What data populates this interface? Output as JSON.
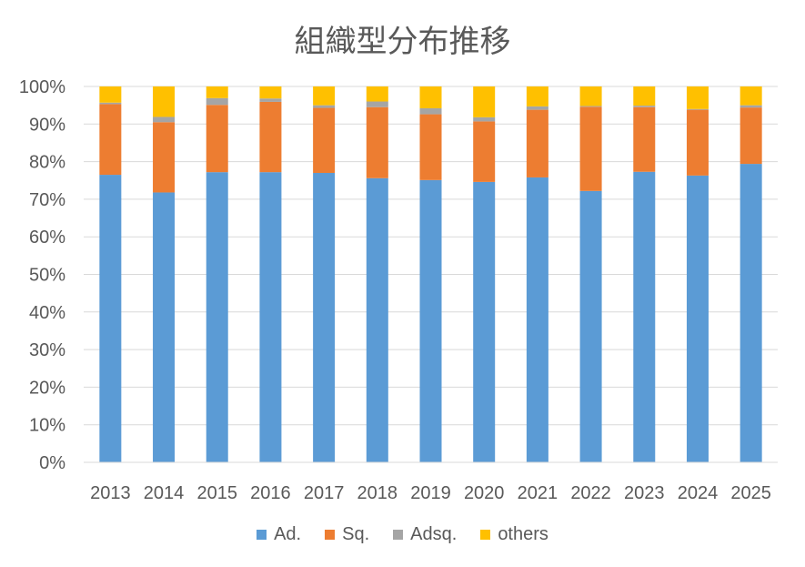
{
  "chart_data": {
    "type": "bar",
    "stacked": true,
    "percent": true,
    "title": "組織型分布推移",
    "categories": [
      "2013",
      "2014",
      "2015",
      "2016",
      "2017",
      "2018",
      "2019",
      "2020",
      "2021",
      "2022",
      "2023",
      "2024",
      "2025"
    ],
    "series": [
      {
        "name": "Ad.",
        "color": "#5B9BD5",
        "values": [
          76.5,
          71.8,
          77.2,
          77.2,
          77.0,
          75.6,
          75.1,
          74.6,
          75.8,
          72.2,
          77.3,
          76.3,
          79.4
        ]
      },
      {
        "name": "Sq.",
        "color": "#ED7D31",
        "values": [
          18.8,
          18.7,
          17.9,
          18.7,
          17.3,
          18.9,
          17.5,
          16.1,
          18.0,
          22.4,
          17.2,
          17.5,
          15.0
        ]
      },
      {
        "name": "Adsq.",
        "color": "#A5A5A5",
        "values": [
          0.4,
          1.4,
          1.8,
          0.9,
          0.7,
          1.5,
          1.6,
          1.1,
          0.9,
          0.2,
          0.4,
          0.2,
          0.6
        ]
      },
      {
        "name": "others",
        "color": "#FFC000",
        "values": [
          4.3,
          8.1,
          3.1,
          3.2,
          5.0,
          4.0,
          5.8,
          8.2,
          5.3,
          5.2,
          5.1,
          6.0,
          5.0
        ]
      }
    ],
    "ylim": [
      0,
      100
    ],
    "yticks": [
      "0%",
      "10%",
      "20%",
      "30%",
      "40%",
      "50%",
      "60%",
      "70%",
      "80%",
      "90%",
      "100%"
    ],
    "grid": true,
    "legend_position": "bottom"
  }
}
